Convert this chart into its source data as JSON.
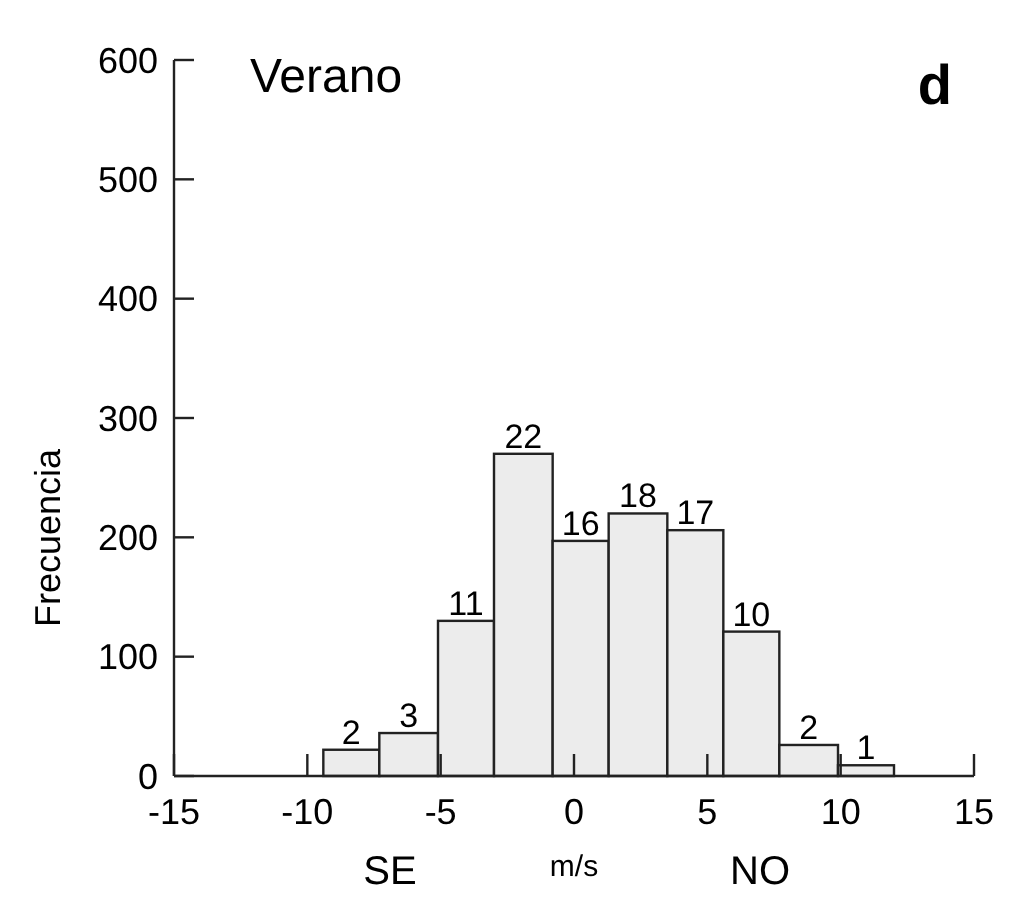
{
  "chart_data": {
    "type": "histogram",
    "title": "Verano",
    "xlabel": "m/s",
    "ylabel": "Frecuencia",
    "annotations": [
      "d",
      "SE",
      "NO",
      {
        "text": "2",
        "x": -8.35,
        "y": 22
      },
      {
        "text": "3",
        "x": -6.2,
        "y": 36
      },
      {
        "text": "11",
        "x": -4.05,
        "y": 130
      },
      {
        "text": "22",
        "x": -1.9,
        "y": 270
      },
      {
        "text": "16",
        "x": 0.25,
        "y": 197
      },
      {
        "text": "18",
        "x": 2.4,
        "y": 220
      },
      {
        "text": "17",
        "x": 4.55,
        "y": 206
      },
      {
        "text": "10",
        "x": 6.65,
        "y": 121
      },
      {
        "text": "2",
        "x": 8.8,
        "y": 26
      },
      {
        "text": "1",
        "x": 10.95,
        "y": 9
      }
    ],
    "bins": [
      -9.4,
      -7.3,
      -5.1,
      -3.0,
      -0.8,
      1.3,
      3.5,
      5.6,
      7.7,
      9.9,
      12.0
    ],
    "values": [
      22,
      36,
      130,
      270,
      197,
      220,
      206,
      121,
      26,
      9
    ],
    "color": "#ececec",
    "xlim": [
      -15,
      15
    ],
    "xticks": [
      -15,
      -10,
      -5,
      0,
      5,
      10,
      15
    ],
    "ylim": [
      0,
      600
    ],
    "yticks": [
      0,
      100,
      200,
      300,
      400,
      500,
      600
    ]
  }
}
